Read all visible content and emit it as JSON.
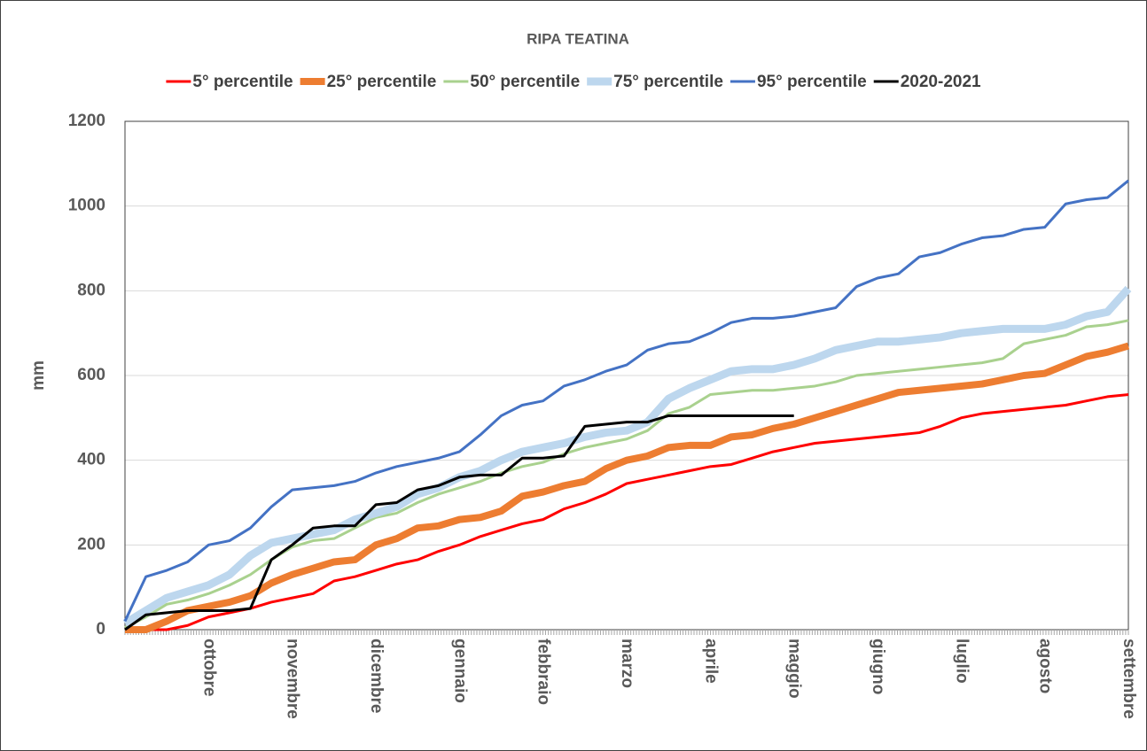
{
  "chart_data": {
    "type": "line",
    "title": "RIPA TEATINA",
    "y_label": "mm",
    "categories": [
      null,
      null,
      null,
      null,
      "ottobre",
      null,
      null,
      null,
      "novembre",
      null,
      null,
      null,
      "dicembre",
      null,
      null,
      null,
      "gennaio",
      null,
      null,
      null,
      "febbraio",
      null,
      null,
      null,
      "marzo",
      null,
      null,
      null,
      "aprile",
      null,
      null,
      null,
      "maggio",
      null,
      null,
      null,
      "giugno",
      null,
      null,
      null,
      "luglio",
      null,
      null,
      null,
      "agosto",
      null,
      null,
      null,
      "settembre"
    ],
    "ylim": [
      0,
      1200
    ],
    "yticks": [
      0,
      200,
      400,
      600,
      800,
      1000,
      1200
    ],
    "grid": true,
    "legend": "top",
    "series": [
      {
        "name": "5° percentile",
        "color": "#ff0000",
        "width": 3,
        "values": [
          0,
          0,
          0,
          10,
          30,
          40,
          50,
          65,
          75,
          85,
          115,
          125,
          140,
          155,
          165,
          185,
          200,
          220,
          235,
          250,
          260,
          285,
          300,
          320,
          345,
          355,
          365,
          375,
          385,
          390,
          405,
          420,
          430,
          440,
          445,
          450,
          455,
          460,
          465,
          480,
          500,
          510,
          515,
          520,
          525,
          530,
          540,
          550,
          555
        ]
      },
      {
        "name": "25° percentile",
        "color": "#ed7d31",
        "width": 8,
        "values": [
          0,
          0,
          20,
          45,
          55,
          65,
          80,
          110,
          130,
          145,
          160,
          165,
          200,
          215,
          240,
          245,
          260,
          265,
          280,
          315,
          325,
          340,
          350,
          380,
          400,
          410,
          430,
          435,
          435,
          455,
          460,
          475,
          485,
          500,
          515,
          530,
          545,
          560,
          565,
          570,
          575,
          580,
          590,
          600,
          605,
          625,
          645,
          655,
          670
        ]
      },
      {
        "name": "50° percentile",
        "color": "#a9d18e",
        "width": 3,
        "values": [
          5,
          30,
          60,
          70,
          85,
          105,
          130,
          165,
          195,
          210,
          215,
          240,
          265,
          275,
          300,
          320,
          335,
          350,
          370,
          385,
          395,
          415,
          430,
          440,
          450,
          470,
          510,
          525,
          555,
          560,
          565,
          565,
          570,
          575,
          585,
          600,
          605,
          610,
          615,
          620,
          625,
          630,
          640,
          675,
          685,
          695,
          715,
          720,
          730
        ]
      },
      {
        "name": "75° percentile",
        "color": "#bdd7ee",
        "width": 9,
        "values": [
          15,
          45,
          75,
          90,
          105,
          130,
          175,
          205,
          215,
          225,
          235,
          260,
          275,
          290,
          320,
          335,
          360,
          375,
          400,
          420,
          430,
          440,
          455,
          465,
          470,
          490,
          545,
          570,
          590,
          610,
          615,
          615,
          625,
          640,
          660,
          670,
          680,
          680,
          685,
          690,
          700,
          705,
          710,
          710,
          710,
          720,
          740,
          750,
          805
        ]
      },
      {
        "name": "95° percentile",
        "color": "#4472c4",
        "width": 3,
        "values": [
          20,
          125,
          140,
          160,
          200,
          210,
          240,
          290,
          330,
          335,
          340,
          350,
          370,
          385,
          395,
          405,
          420,
          460,
          505,
          530,
          540,
          575,
          590,
          610,
          625,
          660,
          675,
          680,
          700,
          725,
          735,
          735,
          740,
          750,
          760,
          810,
          830,
          840,
          880,
          890,
          910,
          925,
          930,
          945,
          950,
          1005,
          1015,
          1020,
          1060
        ]
      },
      {
        "name": "2020-2021",
        "color": "#000000",
        "width": 3,
        "values": [
          0,
          35,
          40,
          45,
          45,
          45,
          50,
          165,
          200,
          240,
          245,
          245,
          295,
          300,
          330,
          340,
          360,
          365,
          365,
          405,
          405,
          410,
          480,
          485,
          490,
          490,
          505,
          505,
          505,
          505,
          505,
          505,
          505,
          null,
          null,
          null,
          null,
          null,
          null,
          null,
          null,
          null,
          null,
          null,
          null,
          null,
          null,
          null,
          null
        ]
      }
    ]
  }
}
